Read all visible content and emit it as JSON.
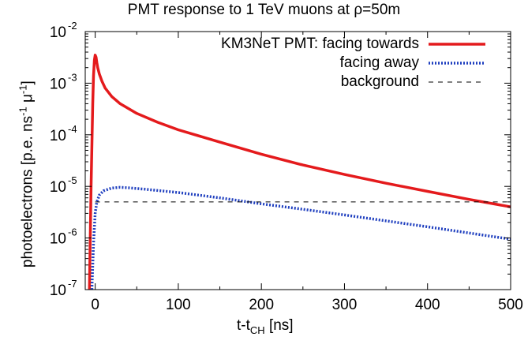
{
  "chart_data": {
    "type": "line",
    "title_pre": "PMT response to 1 TeV muons at ",
    "title_rho": "ρ",
    "title_post": "=50m",
    "xlabel_main": "t-t",
    "xlabel_sub": "CH",
    "xlabel_unit": " [ns]",
    "ylabel_main": "photoelectrons [p.e. ns",
    "ylabel_sup1": "-1",
    "ylabel_mu": " μ",
    "ylabel_sup2": "-1",
    "ylabel_end": "]",
    "xlim": [
      -12,
      500
    ],
    "ylim": [
      1e-07,
      0.01
    ],
    "yscale": "log",
    "x_ticks": [
      "0",
      "100",
      "200",
      "300",
      "400",
      "500"
    ],
    "x_tick_values": [
      0,
      100,
      200,
      300,
      400,
      500
    ],
    "y_ticks": [
      {
        "base": "10",
        "exp": "-7",
        "value": 1e-07
      },
      {
        "base": "10",
        "exp": "-6",
        "value": 1e-06
      },
      {
        "base": "10",
        "exp": "-5",
        "value": 1e-05
      },
      {
        "base": "10",
        "exp": "-4",
        "value": 0.0001
      },
      {
        "base": "10",
        "exp": "-3",
        "value": 0.001
      },
      {
        "base": "10",
        "exp": "-2",
        "value": 0.01
      }
    ],
    "legend_position": "top-right",
    "series": [
      {
        "name": "KM3NeT PMT: facing towards",
        "color": "#e41a1c",
        "style": "solid",
        "x": [
          -7,
          -5,
          -3,
          -2,
          -1,
          0,
          1,
          2,
          3,
          5,
          8,
          12,
          20,
          30,
          50,
          75,
          100,
          150,
          200,
          250,
          300,
          350,
          400,
          450,
          500
        ],
        "y": [
          1e-07,
          1e-05,
          0.0004,
          0.0014,
          0.0028,
          0.0035,
          0.0032,
          0.0025,
          0.002,
          0.0015,
          0.0011,
          0.0008,
          0.00055,
          0.0004,
          0.00026,
          0.000175,
          0.000125,
          7.2e-05,
          4.2e-05,
          2.6e-05,
          1.7e-05,
          1.15e-05,
          8e-06,
          5.6e-06,
          4e-06
        ]
      },
      {
        "name": "facing away",
        "color": "#1f3fbf",
        "style": "dotted",
        "x": [
          -4,
          -2,
          0,
          2,
          5,
          10,
          20,
          30,
          40,
          60,
          100,
          150,
          200,
          250,
          300,
          350,
          400,
          450,
          500
        ],
        "y": [
          1e-07,
          8e-07,
          3e-06,
          5e-06,
          6.8e-06,
          8.2e-06,
          9.3e-06,
          9.6e-06,
          9.4e-06,
          8.8e-06,
          7.6e-06,
          6e-06,
          4.6e-06,
          3.6e-06,
          2.8e-06,
          2.15e-06,
          1.65e-06,
          1.25e-06,
          9.5e-07
        ]
      },
      {
        "name": "background",
        "color": "#000000",
        "style": "dashed",
        "x": [
          0,
          500
        ],
        "y": [
          5e-06,
          5e-06
        ]
      }
    ]
  }
}
